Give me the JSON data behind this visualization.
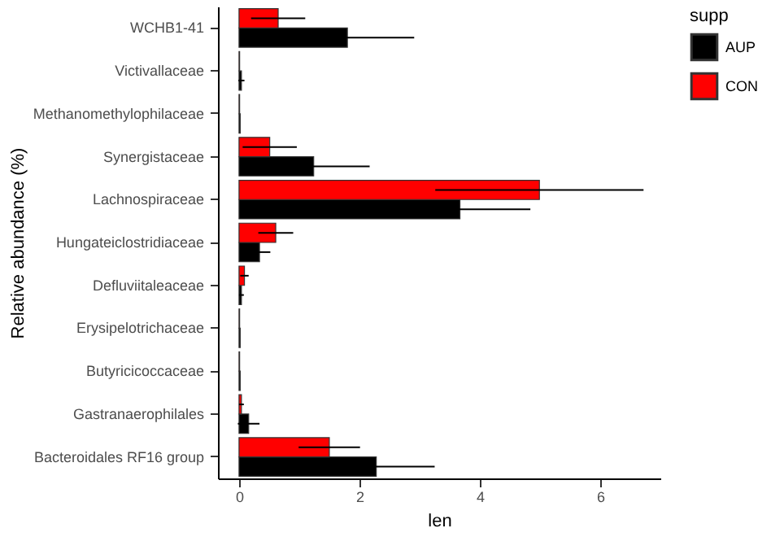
{
  "chart_data": {
    "type": "bar",
    "orientation": "horizontal",
    "categories": [
      "WCHB1-41",
      "Victivallaceae",
      "Methanomethylophilaceae",
      "Synergistaceae",
      "Lachnospiraceae",
      "Hungateiclostridiaceae",
      "Defluviitaleaceae",
      "Erysipelotrichaceae",
      "Butyricicoccaceae",
      "Gastranaerophilales",
      "Bacteroidales RF16 group"
    ],
    "series": [
      {
        "name": "AUP",
        "color": "#000000",
        "values": [
          1.8,
          0.04,
          0.02,
          1.24,
          3.67,
          0.34,
          0.04,
          0.02,
          0.02,
          0.16,
          2.28
        ],
        "errors": [
          1.11,
          0.05,
          null,
          0.93,
          1.17,
          0.18,
          0.04,
          null,
          null,
          0.18,
          0.97
        ]
      },
      {
        "name": "CON",
        "color": "#ff0000",
        "values": [
          0.65,
          0.01,
          0.01,
          0.51,
          4.99,
          0.61,
          0.09,
          0.01,
          0.01,
          0.04,
          1.5
        ],
        "errors": [
          0.45,
          null,
          null,
          0.45,
          1.73,
          0.29,
          0.07,
          null,
          null,
          0.04,
          0.51
        ]
      }
    ],
    "xlabel": "len",
    "ylabel": "Relative abundance (%)",
    "legend_title": "supp",
    "legend": "right",
    "xlim": [
      -0.35,
      7
    ],
    "xticks": [
      0,
      2,
      4,
      6
    ],
    "grid": false
  }
}
